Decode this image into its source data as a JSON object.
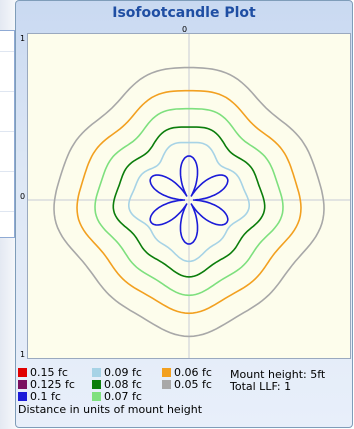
{
  "title": "Isofootcandle Plot",
  "axis": {
    "top_center": "0",
    "left_top": "1",
    "left_middle": "0",
    "left_bottom": "1"
  },
  "legend": [
    {
      "label": "0.15 fc",
      "color": "#e00000"
    },
    {
      "label": "0.125 fc",
      "color": "#7a1060"
    },
    {
      "label": "0.1 fc",
      "color": "#1b1bd8"
    },
    {
      "label": "0.09 fc",
      "color": "#a7d3e6"
    },
    {
      "label": "0.08 fc",
      "color": "#0b7d0b"
    },
    {
      "label": "0.07 fc",
      "color": "#7ee07e"
    },
    {
      "label": "0.06 fc",
      "color": "#f2a020"
    },
    {
      "label": "0.05 fc",
      "color": "#a8a8a8"
    }
  ],
  "info": {
    "mount_height": "Mount height: 5ft",
    "total_llf": "Total LLF: 1",
    "distance_note": "Distance in units of mount height"
  },
  "colors": {
    "title": "#1f4ea3",
    "plot_background": "#fdfdec",
    "grid": "#c7ccd6"
  }
}
